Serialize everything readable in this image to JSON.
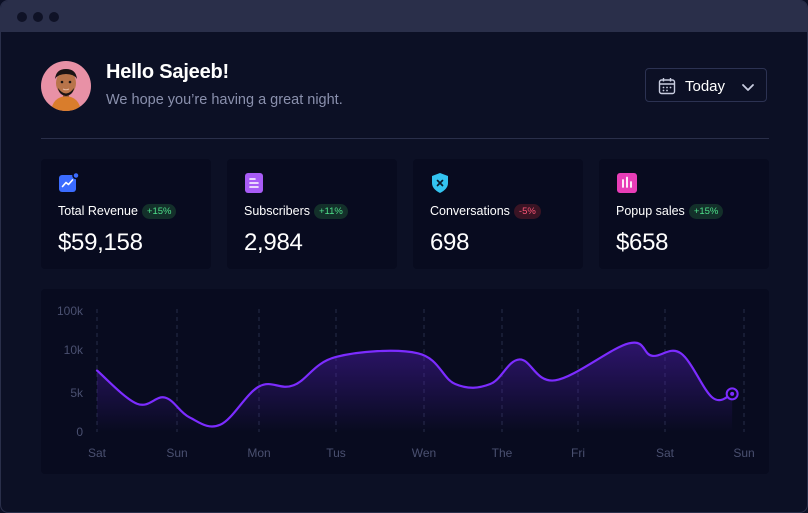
{
  "header": {
    "greeting": "Hello Sajeeb!",
    "subtitle": "We hope you’re having a great night."
  },
  "date_filter": {
    "label": "Today",
    "calendar_icon": "calendar-icon",
    "chevron_icon": "chevron-down-icon"
  },
  "stats": [
    {
      "title": "Total Revenue",
      "change": "+15%",
      "trend": "up",
      "value": "$59,158",
      "icon": "trending-chart-icon",
      "color": "#3b6cff"
    },
    {
      "title": "Subscribers",
      "change": "+11%",
      "trend": "up",
      "value": "2,984",
      "icon": "document-icon",
      "color": "#a85cf6"
    },
    {
      "title": "Conversations",
      "change": "-5%",
      "trend": "down",
      "value": "698",
      "icon": "shield-x-icon",
      "color": "#33c3f0"
    },
    {
      "title": "Popup sales",
      "change": "+15%",
      "trend": "up",
      "value": "$658",
      "icon": "bar-chart-icon",
      "color": "#e83eb7"
    }
  ],
  "colors": {
    "accent": "#7c2cff",
    "background": "#0c1025",
    "card": "#080b1f",
    "positive": "#4ee08a",
    "negative": "#ff5678"
  },
  "chart_data": {
    "type": "area",
    "x_ticks": [
      "Sat",
      "Sun",
      "Mon",
      "Tus",
      "Wen",
      "The",
      "Fri",
      "Sat",
      "Sun"
    ],
    "y_ticks": [
      "100k",
      "10k",
      "5k",
      "0"
    ],
    "points": [
      [
        0.0,
        0.5
      ],
      [
        0.5,
        0.23
      ],
      [
        0.85,
        0.28
      ],
      [
        1.15,
        0.12
      ],
      [
        1.53,
        0.06
      ],
      [
        2.0,
        0.37
      ],
      [
        2.45,
        0.38
      ],
      [
        3.0,
        0.61
      ],
      [
        3.93,
        0.64
      ],
      [
        4.4,
        0.39
      ],
      [
        4.85,
        0.39
      ],
      [
        5.23,
        0.59
      ],
      [
        5.7,
        0.42
      ],
      [
        6.58,
        0.72
      ],
      [
        6.85,
        0.62
      ],
      [
        7.2,
        0.64
      ],
      [
        7.6,
        0.28
      ],
      [
        7.85,
        0.31
      ]
    ],
    "highlight_point_index": 17,
    "grid": "vertical dashed"
  }
}
